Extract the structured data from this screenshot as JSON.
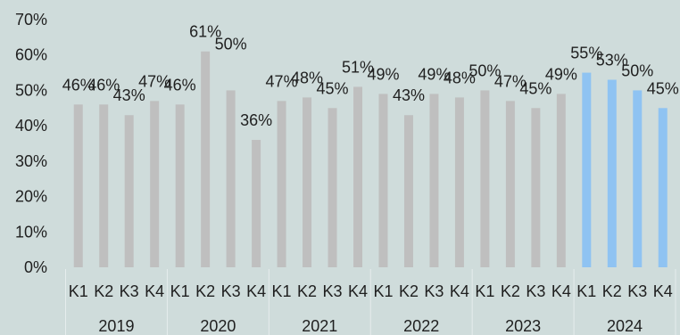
{
  "chart_data": {
    "type": "bar",
    "categories": [
      "K1",
      "K2",
      "K3",
      "K4",
      "K1",
      "K2",
      "K3",
      "K4",
      "K1",
      "K2",
      "K3",
      "K4",
      "K1",
      "K2",
      "K3",
      "K4",
      "K1",
      "K2",
      "K3",
      "K4",
      "K1",
      "K2",
      "K3",
      "K4"
    ],
    "category_groups": [
      {
        "label": "2019",
        "count": 4
      },
      {
        "label": "2020",
        "count": 4
      },
      {
        "label": "2021",
        "count": 4
      },
      {
        "label": "2022",
        "count": 4
      },
      {
        "label": "2023",
        "count": 4
      },
      {
        "label": "2024",
        "count": 4
      }
    ],
    "values": [
      46,
      46,
      43,
      47,
      46,
      61,
      50,
      36,
      47,
      48,
      45,
      51,
      49,
      43,
      49,
      48,
      50,
      47,
      45,
      49,
      55,
      53,
      50,
      45
    ],
    "data_labels": [
      "46%",
      "46%",
      "43%",
      "47%",
      "46%",
      "61%",
      "50%",
      "36%",
      "47%",
      "48%",
      "45%",
      "51%",
      "49%",
      "43%",
      "49%",
      "48%",
      "50%",
      "47%",
      "45%",
      "49%",
      "55%",
      "53%",
      "50%",
      "45%"
    ],
    "ylim": [
      0,
      70
    ],
    "y_tick_values": [
      0,
      10,
      20,
      30,
      40,
      50,
      60,
      70
    ],
    "y_tick_labels": [
      "0%",
      "10%",
      "20%",
      "30%",
      "40%",
      "50%",
      "60%",
      "70%"
    ],
    "value_format": "percent",
    "grid": false,
    "legend": "none",
    "highlight_group": "2024",
    "colors": {
      "bar": "#bfbfbf",
      "highlight_bar": "#8fc3f2",
      "text": "#1f1f1f",
      "background": "#cfdcdb",
      "group_divider": "#e6eded"
    }
  }
}
